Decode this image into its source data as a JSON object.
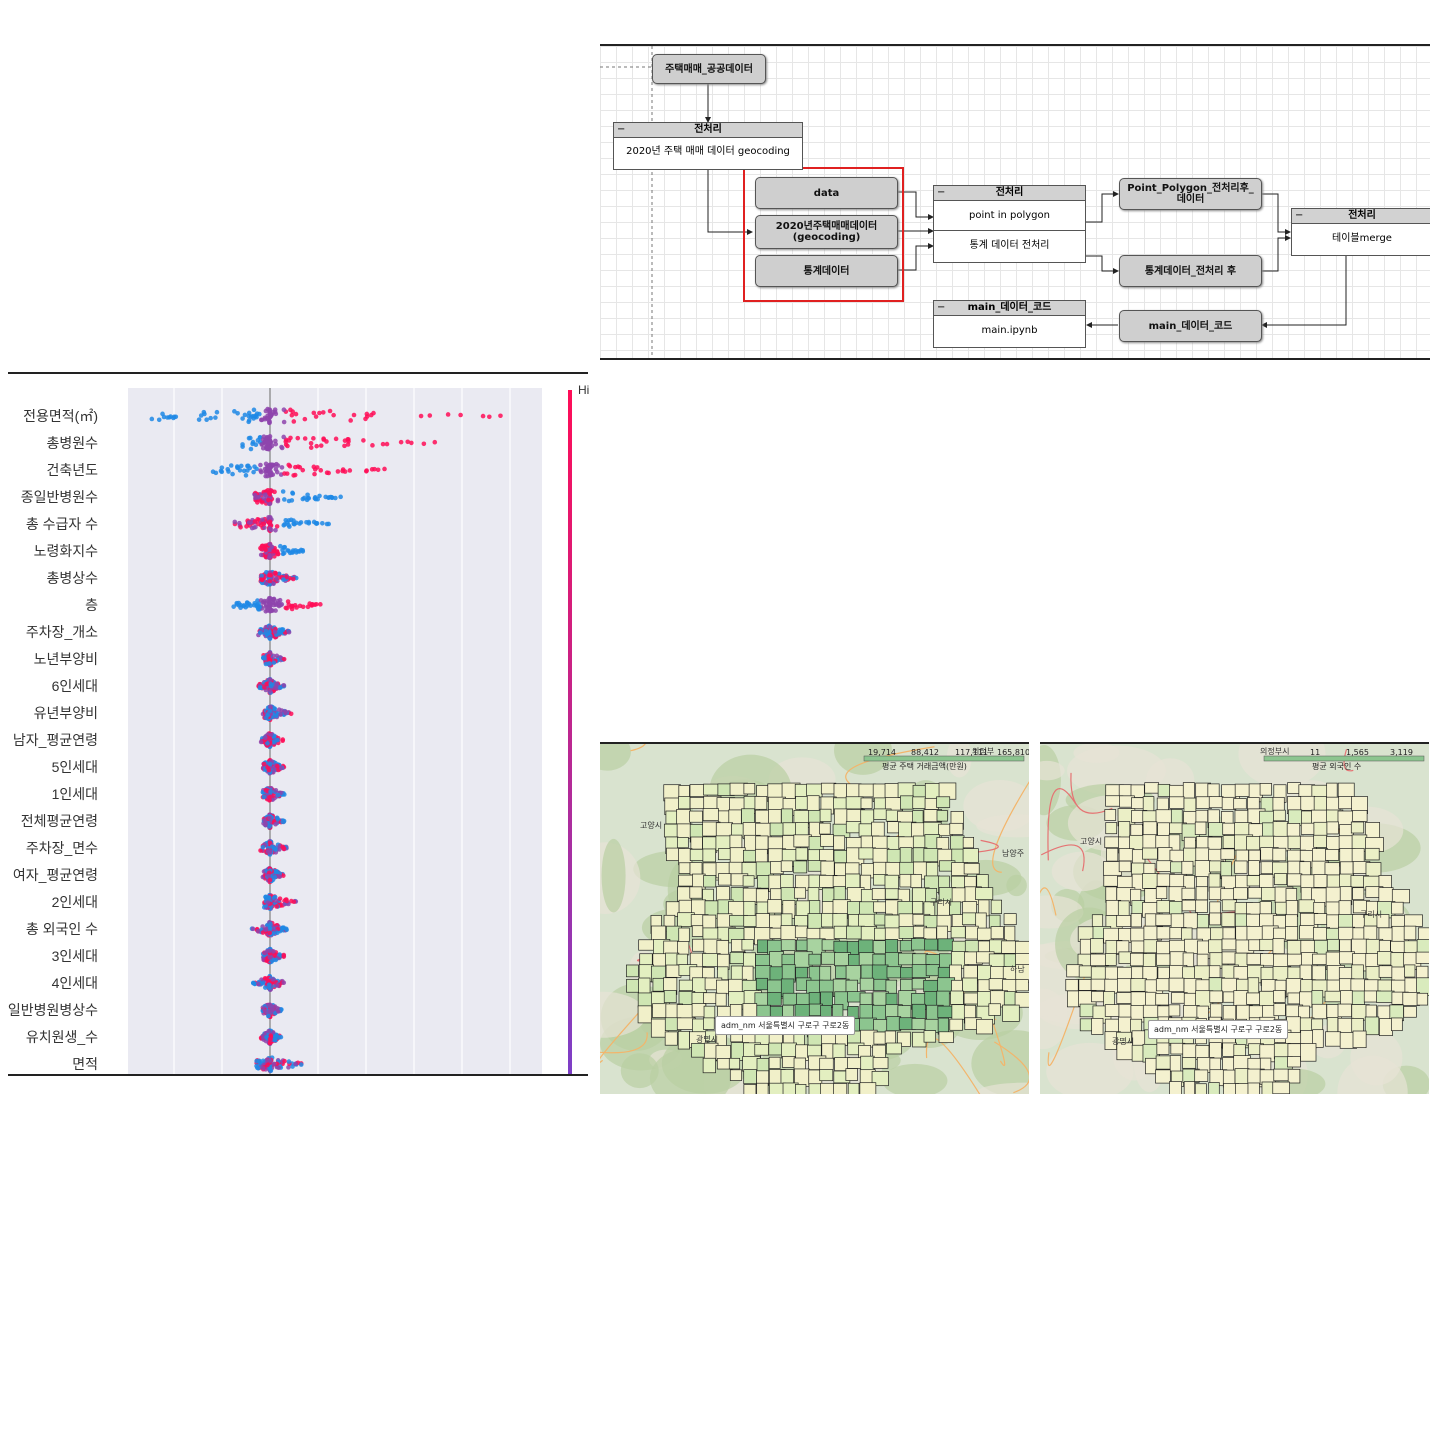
{
  "flow": {
    "public_data": "주택매매_공공데이터",
    "pre1_title": "전처리",
    "pre1_row": "2020년 주택 매매 데이터 geocoding",
    "data_node": "data",
    "geo_node": "2020년주택매매데이터\n(geocoding)",
    "stat_node": "통계데이터",
    "pre2_title": "전처리",
    "pre2_row1": "point in polygon",
    "pre2_row2": "통계 데이터 전처리",
    "pp_node": "Point_Polygon_전처리후_\n데이터",
    "stat_after_node": "통계데이터_전처리 후",
    "pre3_title": "전처리",
    "pre3_row": "테이블merge",
    "main_code_node": "main_데이터_코드",
    "main_cont_title": "main_데이터_코드",
    "main_cont_row": "main.ipynb",
    "minus": "−"
  },
  "chart_data": {
    "type": "scatter",
    "title": "",
    "colorbar_label": "Hi",
    "features": [
      "전용면적(㎡)",
      "총병원수",
      "건축년도",
      "종일반병원수",
      "총 수급자 수",
      "노령화지수",
      "총병상수",
      "층",
      "주차장_개소",
      "노년부양비",
      "6인세대",
      "유년부양비",
      "남자_평균연령",
      "5인세대",
      "1인세대",
      "전체평균연령",
      "주차장_면수",
      "여자_평균연령",
      "2인세대",
      "총 외국인 수",
      "3인세대",
      "4인세대",
      "일반병원병상수",
      "유치원생_수",
      "면적"
    ],
    "spread_low": [
      2.65,
      0.6,
      1.35,
      0.35,
      0.75,
      0.2,
      0.2,
      0.85,
      0.25,
      0.15,
      0.25,
      0.15,
      0.2,
      0.15,
      0.15,
      0.15,
      0.2,
      0.15,
      0.15,
      0.4,
      0.15,
      0.35,
      0.15,
      0.2,
      0.3
    ],
    "spread_high": [
      5.4,
      3.5,
      2.5,
      1.5,
      1.3,
      0.75,
      0.55,
      1.1,
      0.45,
      0.3,
      0.3,
      0.45,
      0.3,
      0.3,
      0.3,
      0.3,
      0.35,
      0.3,
      0.55,
      0.35,
      0.3,
      0.3,
      0.25,
      0.25,
      0.75
    ]
  },
  "maps": [
    {
      "colorbar_values": [
        "19,714",
        "88,412",
        "117,111",
        "165,810"
      ],
      "colorbar_title": "평균 주택 거래금액(만원)",
      "tooltip": "adm_nm  서울특별시 구로구 구로2동",
      "places": [
        "고양시",
        "구리시",
        "하남",
        "광명시",
        "남양주",
        "의정부"
      ]
    },
    {
      "colorbar_values": [
        "11",
        "1,565",
        "3,119"
      ],
      "colorbar_title": "평균 외국인 수",
      "tooltip": "adm_nm  서울특별시 구로구 구로2동",
      "places": [
        "고양시",
        "구리시",
        "광명시",
        "의정부시"
      ]
    }
  ],
  "colors": {
    "blue": "#1e88e5",
    "pink": "#ff0d57",
    "purple": "#8e44ad",
    "grid_bg": "#eaeaf2"
  }
}
